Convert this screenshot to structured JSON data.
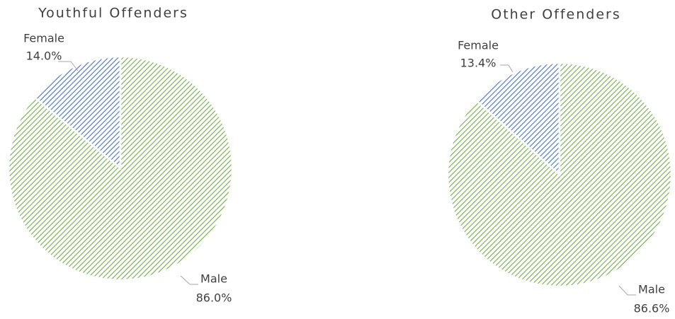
{
  "chart_data": [
    {
      "type": "pie",
      "title": "Youthful Offenders",
      "categories": [
        "Female",
        "Male"
      ],
      "values": [
        14.0,
        86.0
      ],
      "value_labels": [
        "14.0%",
        "86.0%"
      ],
      "colors": [
        "#4472c4",
        "#70ad47"
      ]
    },
    {
      "type": "pie",
      "title": "Other Offenders",
      "categories": [
        "Female",
        "Male"
      ],
      "values": [
        13.4,
        86.6
      ],
      "value_labels": [
        "13.4%",
        "86.6%"
      ],
      "colors": [
        "#4472c4",
        "#70ad47"
      ]
    }
  ]
}
